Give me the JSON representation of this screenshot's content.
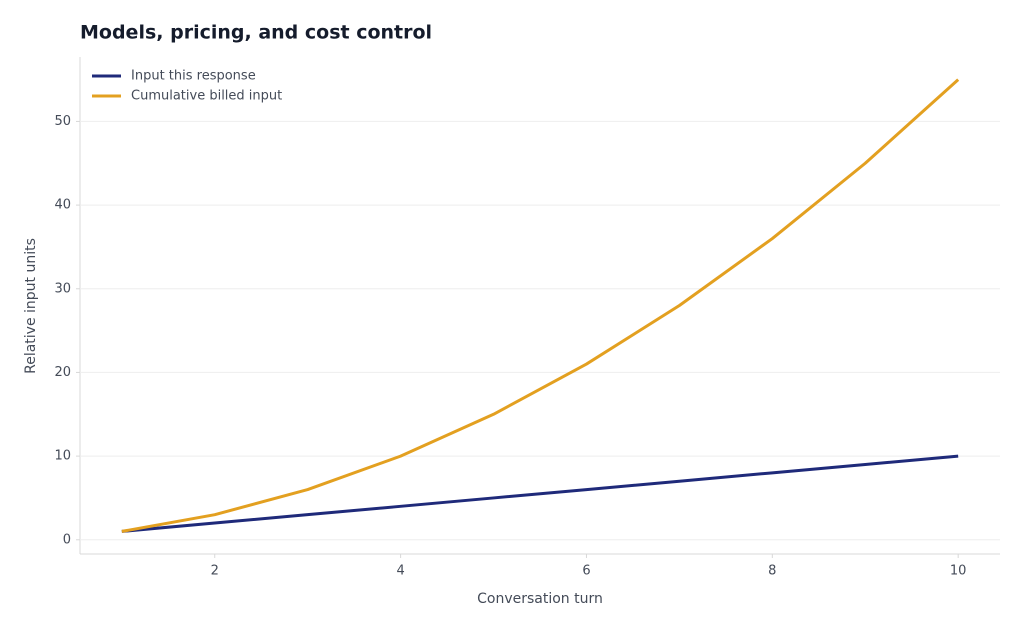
{
  "chart_data": {
    "type": "line",
    "title": "Models, pricing, and cost control",
    "x_label": "Conversation turn",
    "y_label": "Relative input units",
    "x": [
      1,
      2,
      3,
      4,
      5,
      6,
      7,
      8,
      9,
      10
    ],
    "series": [
      {
        "name": "Input this response",
        "color": "#1f2a7a",
        "values": [
          1,
          2,
          3,
          4,
          5,
          6,
          7,
          8,
          9,
          10
        ]
      },
      {
        "name": "Cumulative billed input",
        "color": "#e3a020",
        "values": [
          1,
          3,
          6,
          10,
          15,
          21,
          28,
          36,
          45,
          55
        ]
      }
    ],
    "xlim": [
      0.55,
      10.45
    ],
    "ylim": [
      -1.7,
      57.7
    ],
    "xticks": [
      2,
      4,
      6,
      8,
      10
    ],
    "yticks": [
      0,
      10,
      20,
      30,
      40,
      50
    ],
    "grid": true,
    "legend": "upper-left"
  }
}
